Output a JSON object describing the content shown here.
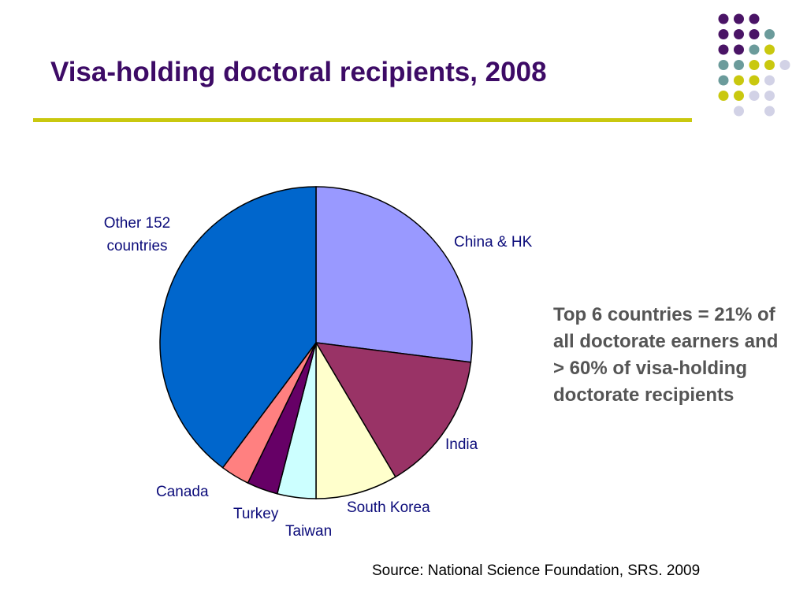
{
  "slide": {
    "title": "Visa-holding doctoral recipients, 2008",
    "note": "Top 6 countries = 21% of all doctorate earners and > 60% of visa-holding doctorate recipients",
    "source": "Source: National Science Foundation, SRS. 2009",
    "accent_colors": {
      "title": "#3d0b66",
      "rule": "#c9c80f",
      "label": "#0b0b7a",
      "note": "#555555"
    }
  },
  "decoration": {
    "dot_colors": {
      "purple": "#4a1466",
      "teal": "#6b9b9b",
      "yellow": "#c9c80f",
      "lavender": "#d2d2e6"
    },
    "dot_grid": [
      [
        "purple",
        "purple",
        "purple",
        null,
        null
      ],
      [
        "purple",
        "purple",
        "purple",
        "teal",
        null
      ],
      [
        "purple",
        "purple",
        "teal",
        "yellow",
        null
      ],
      [
        "teal",
        "teal",
        "yellow",
        "yellow",
        "lavender"
      ],
      [
        "teal",
        "yellow",
        "yellow",
        "lavender",
        null
      ],
      [
        "yellow",
        "yellow",
        "lavender",
        "lavender",
        null
      ],
      [
        null,
        "lavender",
        null,
        "lavender",
        null
      ]
    ]
  },
  "chart_data": {
    "type": "pie",
    "title": "",
    "start_angle_deg": 0,
    "direction": "clockwise",
    "legend": "none",
    "slices": [
      {
        "label": "China & HK",
        "value": 27.0,
        "color": "#9999ff"
      },
      {
        "label": "India",
        "value": 14.5,
        "color": "#993366"
      },
      {
        "label": "South Korea",
        "value": 8.5,
        "color": "#ffffcc"
      },
      {
        "label": "Taiwan",
        "value": 4.0,
        "color": "#ccffff"
      },
      {
        "label": "Turkey",
        "value": 3.2,
        "color": "#660066"
      },
      {
        "label": "Canada",
        "value": 3.0,
        "color": "#ff8080"
      },
      {
        "label": "Other 152 countries",
        "value": 39.8,
        "color": "#0066cc"
      }
    ]
  }
}
